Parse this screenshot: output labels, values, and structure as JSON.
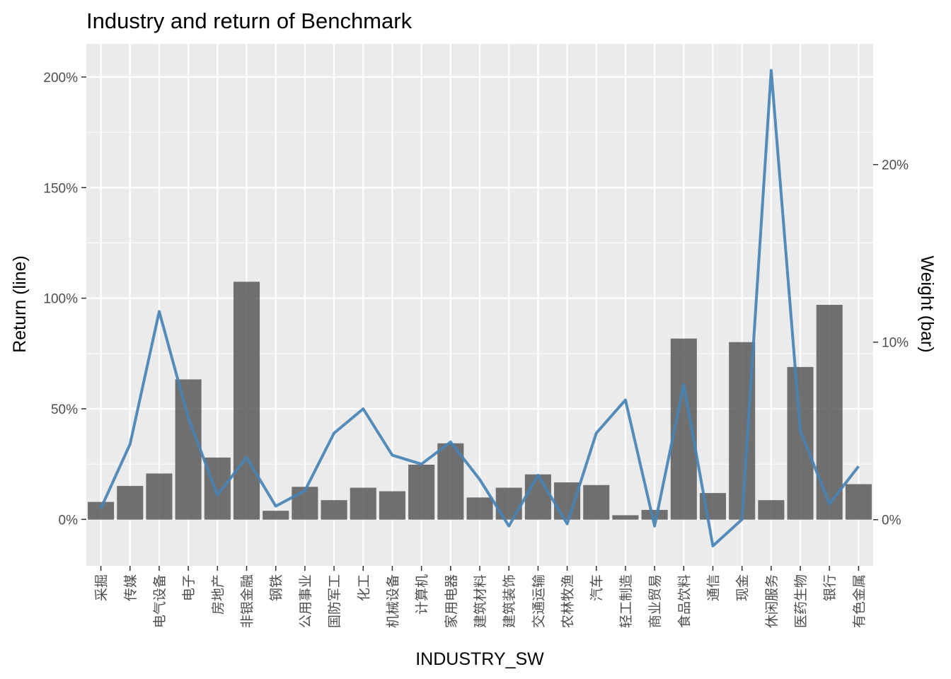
{
  "chart_data": {
    "type": "bar",
    "title": "Industry and return of Benchmark",
    "xlabel": "INDUSTRY_SW",
    "ylabel": "Return (line)",
    "y2label": "Weight (bar)",
    "categories": [
      "采掘",
      "传媒",
      "电气设备",
      "电子",
      "房地产",
      "非银金融",
      "钢铁",
      "公用事业",
      "国防军工",
      "化工",
      "机械设备",
      "计算机",
      "家用电器",
      "建筑材料",
      "建筑装饰",
      "交通运输",
      "农林牧渔",
      "汽车",
      "轻工制造",
      "商业贸易",
      "食品饮料",
      "通信",
      "现金",
      "休闲服务",
      "医药生物",
      "银行",
      "有色金属"
    ],
    "series": [
      {
        "name": "Weight (bar)",
        "type": "bar",
        "axis": "right",
        "values": [
          1.0,
          1.9,
          2.6,
          7.9,
          3.5,
          13.4,
          0.5,
          1.85,
          1.1,
          1.8,
          1.6,
          3.1,
          4.3,
          1.25,
          1.8,
          2.55,
          2.1,
          1.95,
          0.25,
          0.55,
          10.2,
          1.5,
          10.0,
          1.1,
          8.6,
          12.1,
          2.0
        ]
      },
      {
        "name": "Return (line)",
        "type": "line",
        "axis": "left",
        "values": [
          5,
          34,
          94,
          46,
          11,
          28,
          6,
          13,
          39,
          50,
          29,
          25,
          35,
          18,
          -3,
          20,
          -2,
          39,
          54,
          -3,
          61,
          -12,
          0,
          203,
          40,
          7,
          24
        ]
      }
    ],
    "ylim": [
      -21,
      215
    ],
    "y2lim": [
      -2.6,
      26.8
    ],
    "yticks": [
      0,
      50,
      100,
      150,
      200
    ],
    "yticklabels": [
      "0%",
      "50%",
      "100%",
      "150%",
      "200%"
    ],
    "y2ticks": [
      0,
      10,
      20
    ],
    "y2ticklabels": [
      "0%",
      "10%",
      "20%"
    ],
    "grid": true,
    "legend": "none",
    "colors": {
      "panel": "#ebebeb",
      "grid": "#ffffff",
      "bar": "#595959",
      "line": "#4682b4"
    }
  }
}
